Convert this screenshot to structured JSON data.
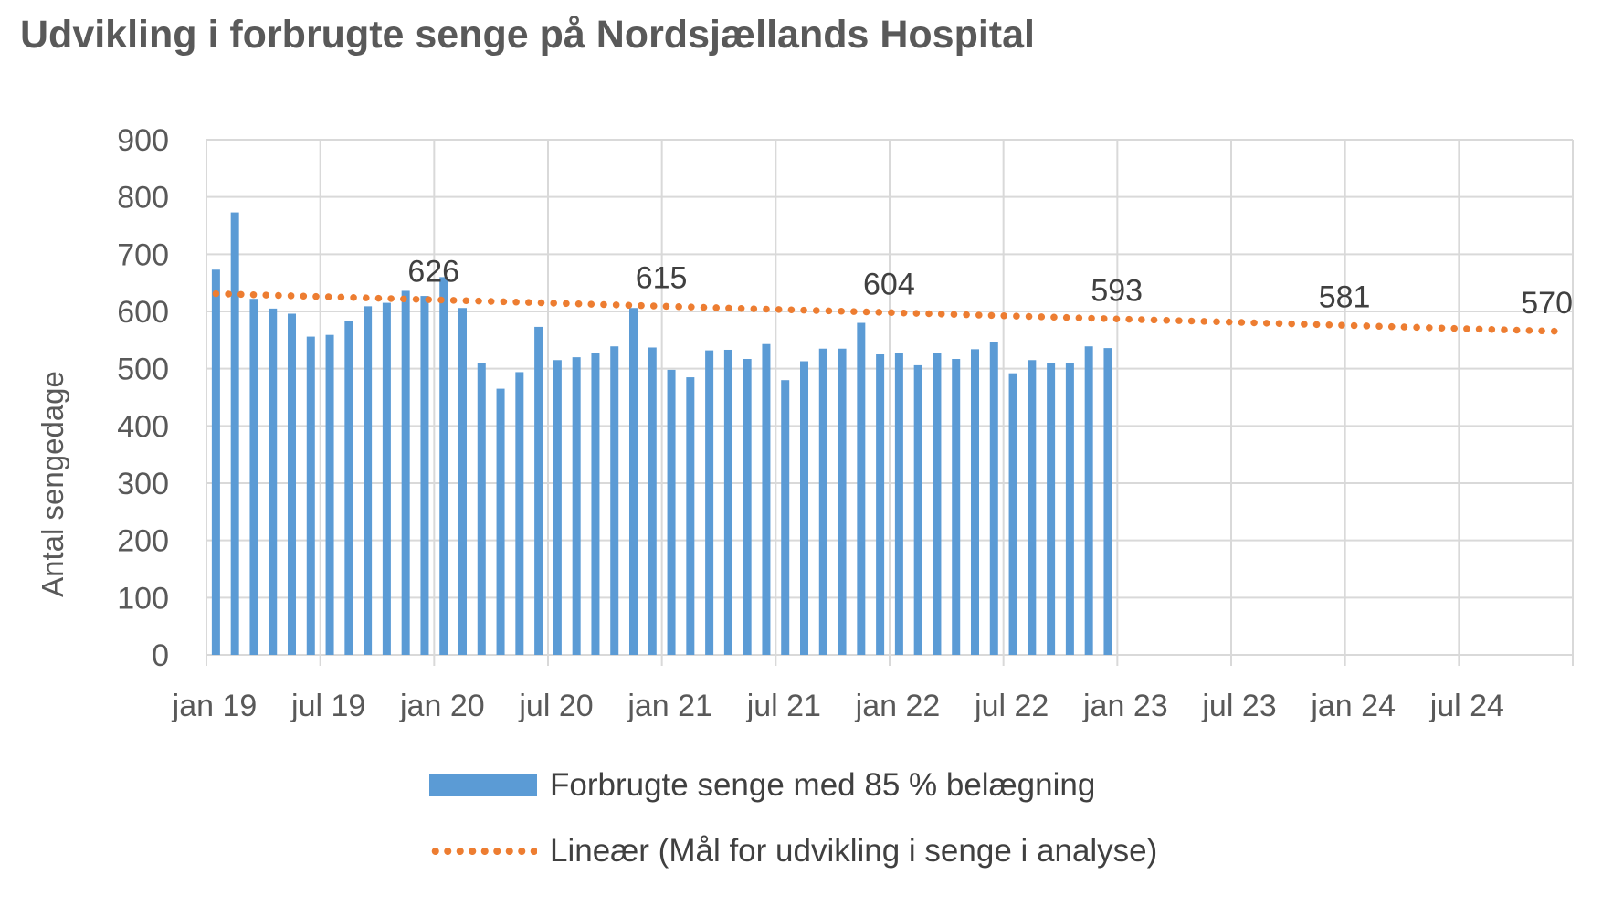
{
  "title": "Udvikling i forbrugte senge på Nordsjællands Hospital",
  "chart_data": {
    "type": "bar",
    "title": "Udvikling i forbrugte senge på Nordsjællands Hospital",
    "ylabel": "Antal sengedage",
    "xlabel": "",
    "ylim": [
      0,
      900
    ],
    "yticks": [
      "0",
      "100",
      "200",
      "300",
      "400",
      "500",
      "600",
      "700",
      "800",
      "900"
    ],
    "xticks": [
      "jan 19",
      "jul 19",
      "jan 20",
      "jul 20",
      "jan 21",
      "jul 21",
      "jan 22",
      "jul 22",
      "jan 23",
      "jul 23",
      "jan 24",
      "jul 24"
    ],
    "grid": true,
    "legend_position": "bottom",
    "series": [
      {
        "name": "Forbrugte senge med 85 % belægning",
        "type": "bar",
        "color": "#5B9BD5",
        "values": [
          673,
          773,
          622,
          605,
          596,
          556,
          559,
          584,
          609,
          615,
          636,
          627,
          660,
          606,
          510,
          465,
          494,
          573,
          515,
          520,
          527,
          539,
          606,
          537,
          498,
          485,
          532,
          533,
          517,
          543,
          480,
          513,
          535,
          535,
          580,
          525,
          527,
          506,
          527,
          517,
          534,
          547,
          492,
          515,
          510,
          510,
          539,
          536
        ]
      },
      {
        "name": "Lineær (Mål for udvikling i senge i analyse)",
        "type": "line",
        "style": "dotted",
        "color": "#ED7D31",
        "start_value": 631,
        "end_value": 565,
        "points": 72,
        "data_labels": [
          {
            "x": "jan 20",
            "value": "626"
          },
          {
            "x": "jan 21",
            "value": "615"
          },
          {
            "x": "jan 22",
            "value": "604"
          },
          {
            "x": "jan 23",
            "value": "593"
          },
          {
            "x": "jan 24",
            "value": "581"
          },
          {
            "x": "dec 24",
            "value": "570"
          }
        ]
      }
    ]
  }
}
